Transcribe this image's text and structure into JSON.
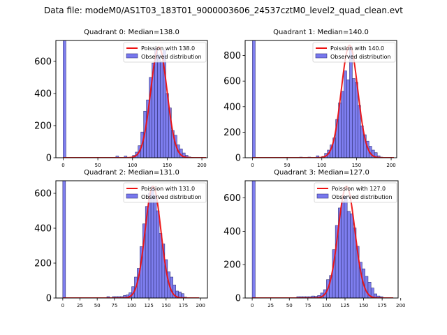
{
  "suptitle": "Data file: modeM0/AS1T03_183T01_9000003606_24537cztM0_level2_quad_clean.evt",
  "colors": {
    "bar_fill": "#7777ee",
    "bar_edge": "#33337a",
    "curve": "#ee1111"
  },
  "chart_data": [
    {
      "type": "bar",
      "title": "Quadrant 0: Median=138.0",
      "legend": [
        "Poission with 138.0",
        "Observed distribution"
      ],
      "legend_position": "top-right",
      "xlim": [
        -10.5,
        208
      ],
      "ylim": [
        0,
        730
      ],
      "xticks": [
        0,
        50,
        100,
        150,
        200
      ],
      "yticks": [
        0,
        200,
        400,
        600
      ],
      "bin_width": 4,
      "poisson_mean": 138.0,
      "poisson_peak": 690,
      "curve_range": [
        0,
        206
      ],
      "bins": [
        0,
        76,
        88,
        100,
        104,
        108,
        112,
        116,
        120,
        124,
        128,
        132,
        136,
        140,
        144,
        148,
        152,
        156,
        160,
        164,
        168,
        172,
        176,
        180,
        184
      ],
      "values": [
        5000,
        10,
        10,
        15,
        35,
        75,
        160,
        290,
        360,
        500,
        590,
        680,
        640,
        600,
        670,
        400,
        310,
        170,
        140,
        80,
        55,
        30,
        15,
        5,
        3
      ]
    },
    {
      "type": "bar",
      "title": "Quadrant 1: Median=140.0",
      "legend": [
        "Poission with 140.0",
        "Observed distribution"
      ],
      "legend_position": "top-right",
      "xlim": [
        -10.5,
        208
      ],
      "ylim": [
        0,
        918
      ],
      "xticks": [
        0,
        50,
        100,
        150,
        200
      ],
      "yticks": [
        0,
        200,
        400,
        600,
        800
      ],
      "bin_width": 4,
      "poisson_mean": 140.0,
      "poisson_peak": 880,
      "curve_range": [
        0,
        204
      ],
      "bins": [
        0,
        68,
        80,
        92,
        100,
        104,
        108,
        112,
        116,
        120,
        124,
        128,
        132,
        136,
        140,
        144,
        148,
        152,
        156,
        160,
        164,
        168,
        172,
        176,
        180,
        184
      ],
      "values": [
        5000,
        5,
        5,
        15,
        10,
        35,
        60,
        100,
        155,
        300,
        430,
        520,
        680,
        610,
        870,
        620,
        590,
        410,
        250,
        180,
        130,
        90,
        60,
        40,
        15,
        5
      ]
    },
    {
      "type": "bar",
      "title": "Quadrant 2: Median=131.0",
      "legend": [
        "Poission with 131.0",
        "Observed distribution"
      ],
      "legend_position": "top-right",
      "xlim": [
        -10,
        210
      ],
      "ylim": [
        0,
        672
      ],
      "xticks": [
        0,
        25,
        50,
        75,
        100,
        125,
        150,
        175,
        200
      ],
      "yticks": [
        0,
        200,
        400,
        600
      ],
      "bin_width": 4,
      "poisson_mean": 131.0,
      "poisson_peak": 640,
      "curve_range": [
        0,
        198
      ],
      "bins": [
        0,
        64,
        72,
        76,
        80,
        84,
        88,
        92,
        96,
        100,
        104,
        108,
        112,
        116,
        120,
        124,
        128,
        132,
        136,
        140,
        144,
        148,
        152,
        156,
        160,
        164,
        168,
        172,
        176
      ],
      "values": [
        5000,
        8,
        8,
        8,
        8,
        8,
        15,
        18,
        30,
        65,
        120,
        170,
        295,
        425,
        525,
        600,
        640,
        590,
        500,
        370,
        310,
        220,
        150,
        120,
        75,
        40,
        35,
        25,
        5
      ]
    },
    {
      "type": "bar",
      "title": "Quadrant 3: Median=127.0",
      "legend": [
        "Poission with 127.0",
        "Observed distribution"
      ],
      "legend_position": "top-right",
      "xlim": [
        -9.5,
        196.5
      ],
      "ylim": [
        0,
        703
      ],
      "xticks": [
        0,
        25,
        50,
        75,
        100,
        125,
        150,
        175,
        200
      ],
      "yticks": [
        0,
        200,
        400,
        600
      ],
      "bin_width": 4,
      "poisson_mean": 127.0,
      "poisson_peak": 670,
      "curve_range": [
        0,
        190
      ],
      "bins": [
        0,
        60,
        64,
        68,
        72,
        76,
        80,
        84,
        88,
        92,
        96,
        100,
        104,
        108,
        112,
        116,
        120,
        124,
        128,
        132,
        136,
        140,
        144,
        148,
        152,
        156,
        160,
        164,
        168,
        172
      ],
      "values": [
        5000,
        8,
        8,
        8,
        8,
        8,
        12,
        10,
        15,
        30,
        50,
        110,
        135,
        290,
        435,
        540,
        580,
        610,
        520,
        505,
        420,
        310,
        215,
        175,
        130,
        95,
        60,
        25,
        12,
        8
      ]
    }
  ]
}
